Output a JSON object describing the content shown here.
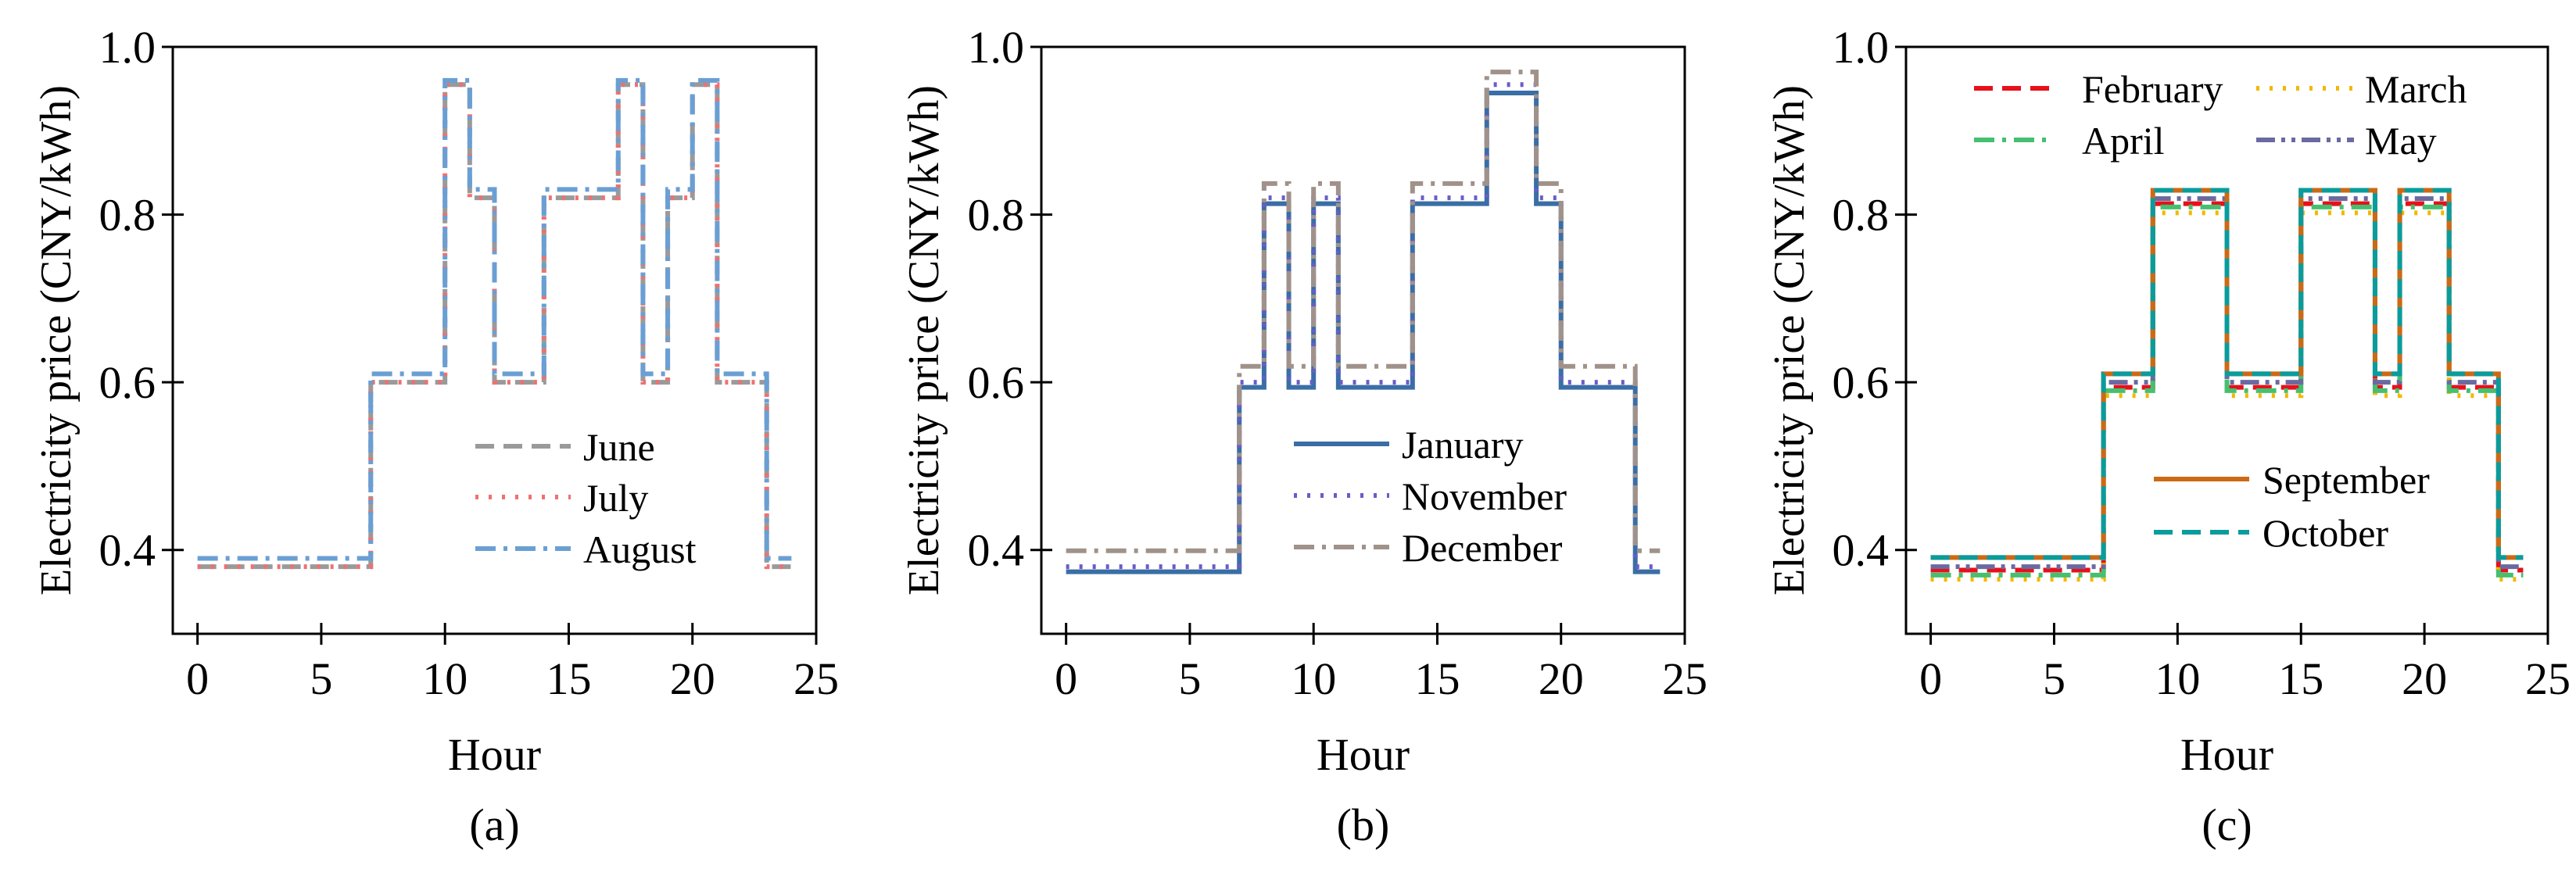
{
  "chart_data": [
    {
      "type": "line",
      "step": "post",
      "caption": "(a)",
      "xlabel": "Hour",
      "ylabel": "Electricity price (CNY/kWh)",
      "xlim": [
        -1,
        25
      ],
      "ylim": [
        0.3,
        1.0
      ],
      "xticks": [
        0,
        5,
        10,
        15,
        20,
        25
      ],
      "yticks": [
        0.4,
        0.6,
        0.8,
        1.0
      ],
      "legend": "center-right",
      "series": [
        {
          "name": "June",
          "color": "#9a9a9a",
          "style": "dashed",
          "values": [
            0.38,
            0.38,
            0.38,
            0.38,
            0.38,
            0.38,
            0.38,
            0.6,
            0.6,
            0.6,
            0.955,
            0.82,
            0.6,
            0.6,
            0.82,
            0.82,
            0.82,
            0.955,
            0.6,
            0.82,
            0.955,
            0.6,
            0.6,
            0.38
          ]
        },
        {
          "name": "July",
          "color": "#f07070",
          "style": "dotted",
          "values": [
            0.38,
            0.38,
            0.38,
            0.38,
            0.38,
            0.38,
            0.38,
            0.6,
            0.6,
            0.6,
            0.955,
            0.82,
            0.6,
            0.6,
            0.82,
            0.82,
            0.82,
            0.955,
            0.6,
            0.82,
            0.955,
            0.6,
            0.6,
            0.38
          ]
        },
        {
          "name": "August",
          "color": "#6a9fd4",
          "style": "dashdot",
          "values": [
            0.39,
            0.39,
            0.39,
            0.39,
            0.39,
            0.39,
            0.39,
            0.61,
            0.61,
            0.61,
            0.96,
            0.83,
            0.61,
            0.61,
            0.83,
            0.83,
            0.83,
            0.96,
            0.61,
            0.83,
            0.96,
            0.61,
            0.61,
            0.39
          ]
        }
      ]
    },
    {
      "type": "line",
      "step": "post",
      "caption": "(b)",
      "xlabel": "Hour",
      "ylabel": "Electricity price (CNY/kWh)",
      "xlim": [
        -1,
        25
      ],
      "ylim": [
        0.3,
        1.0
      ],
      "xticks": [
        0,
        5,
        10,
        15,
        20,
        25
      ],
      "yticks": [
        0.4,
        0.6,
        0.8,
        1.0
      ],
      "legend": "center-right",
      "series": [
        {
          "name": "January",
          "color": "#3a6ea5",
          "style": "solid",
          "values": [
            0.374,
            0.374,
            0.374,
            0.374,
            0.374,
            0.374,
            0.374,
            0.594,
            0.813,
            0.594,
            0.813,
            0.594,
            0.594,
            0.594,
            0.813,
            0.813,
            0.813,
            0.945,
            0.945,
            0.813,
            0.594,
            0.594,
            0.594,
            0.374
          ]
        },
        {
          "name": "November",
          "color": "#6a5cc8",
          "style": "dotted",
          "values": [
            0.38,
            0.38,
            0.38,
            0.38,
            0.38,
            0.38,
            0.38,
            0.6,
            0.82,
            0.6,
            0.82,
            0.6,
            0.6,
            0.6,
            0.82,
            0.82,
            0.82,
            0.955,
            0.955,
            0.82,
            0.6,
            0.6,
            0.6,
            0.38
          ]
        },
        {
          "name": "December",
          "color": "#a0928a",
          "style": "dashdot",
          "values": [
            0.399,
            0.399,
            0.399,
            0.399,
            0.399,
            0.399,
            0.399,
            0.619,
            0.837,
            0.619,
            0.837,
            0.619,
            0.619,
            0.619,
            0.837,
            0.837,
            0.837,
            0.97,
            0.97,
            0.837,
            0.619,
            0.619,
            0.619,
            0.399
          ]
        }
      ]
    },
    {
      "type": "line",
      "step": "post",
      "caption": "(c)",
      "xlabel": "Hour",
      "ylabel": "Electricity price (CNY/kWh)",
      "xlim": [
        -1,
        25
      ],
      "ylim": [
        0.3,
        1.0
      ],
      "xticks": [
        0,
        5,
        10,
        15,
        20,
        25
      ],
      "yticks": [
        0.4,
        0.6,
        0.8,
        1.0
      ],
      "legend": "upper (2 columns) and center-right",
      "series": [
        {
          "name": "February",
          "color": "#e8101a",
          "style": "dashed",
          "values": [
            0.376,
            0.376,
            0.376,
            0.376,
            0.376,
            0.376,
            0.376,
            0.594,
            0.594,
            0.813,
            0.813,
            0.813,
            0.594,
            0.594,
            0.594,
            0.813,
            0.813,
            0.813,
            0.594,
            0.813,
            0.813,
            0.594,
            0.594,
            0.376
          ]
        },
        {
          "name": "March",
          "color": "#f2b800",
          "style": "dotted",
          "values": [
            0.365,
            0.365,
            0.365,
            0.365,
            0.365,
            0.365,
            0.365,
            0.584,
            0.584,
            0.802,
            0.802,
            0.802,
            0.584,
            0.584,
            0.584,
            0.802,
            0.802,
            0.802,
            0.584,
            0.802,
            0.802,
            0.584,
            0.584,
            0.365
          ]
        },
        {
          "name": "April",
          "color": "#44c070",
          "style": "dashdot",
          "values": [
            0.37,
            0.37,
            0.37,
            0.37,
            0.37,
            0.37,
            0.37,
            0.59,
            0.59,
            0.809,
            0.809,
            0.809,
            0.59,
            0.59,
            0.59,
            0.809,
            0.809,
            0.809,
            0.59,
            0.809,
            0.809,
            0.59,
            0.59,
            0.37
          ]
        },
        {
          "name": "May",
          "color": "#6a6aa0",
          "style": "dashdotdot",
          "values": [
            0.38,
            0.38,
            0.38,
            0.38,
            0.38,
            0.38,
            0.38,
            0.6,
            0.6,
            0.819,
            0.819,
            0.819,
            0.6,
            0.6,
            0.6,
            0.819,
            0.819,
            0.819,
            0.6,
            0.819,
            0.819,
            0.6,
            0.6,
            0.38
          ]
        },
        {
          "name": "September",
          "color": "#cc6a14",
          "style": "solid",
          "values": [
            0.391,
            0.391,
            0.391,
            0.391,
            0.391,
            0.391,
            0.391,
            0.61,
            0.61,
            0.829,
            0.829,
            0.829,
            0.61,
            0.61,
            0.61,
            0.829,
            0.829,
            0.829,
            0.61,
            0.829,
            0.829,
            0.61,
            0.61,
            0.391
          ]
        },
        {
          "name": "October",
          "color": "#0a9c9c",
          "style": "dashed",
          "values": [
            0.391,
            0.391,
            0.391,
            0.391,
            0.391,
            0.391,
            0.391,
            0.61,
            0.61,
            0.829,
            0.829,
            0.829,
            0.61,
            0.61,
            0.61,
            0.829,
            0.829,
            0.829,
            0.61,
            0.829,
            0.829,
            0.61,
            0.61,
            0.391
          ]
        }
      ]
    }
  ]
}
